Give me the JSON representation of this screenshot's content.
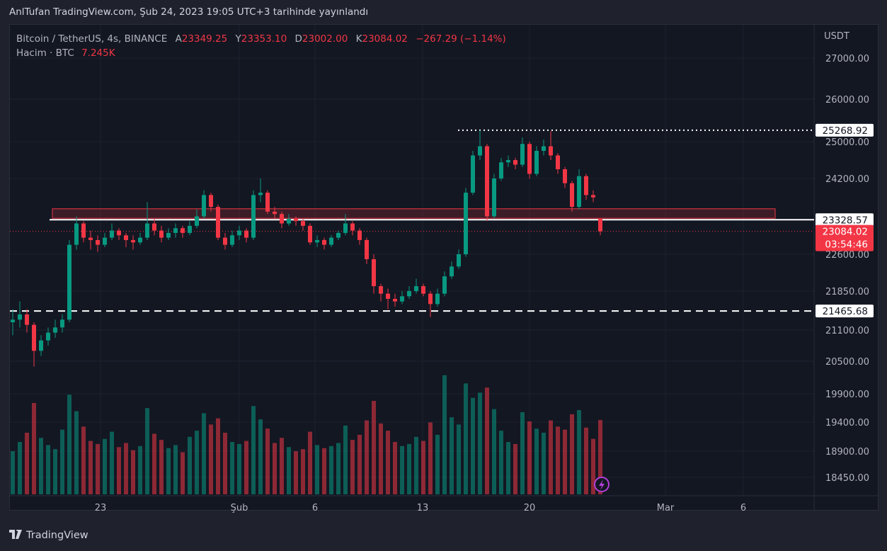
{
  "published_line": "AnlTufan TradingView.com, Şub 24, 2023 19:05 UTC+3 tarihinde yayınlandı",
  "legend": {
    "symbol": "Bitcoin / TetherUS, 4s, BINANCE",
    "open_label": "A",
    "open": "23349.25",
    "high_label": "Y",
    "high": "23353.10",
    "low_label": "D",
    "low": "23002.00",
    "close_label": "K",
    "close": "23084.02",
    "change": "−267.29 (−1.14%)",
    "volume_label": "Hacim · BTC",
    "volume": "7.245K"
  },
  "price_axis": {
    "currency": "USDT",
    "ticks": [
      "27000.00",
      "26000.00",
      "25000.00",
      "24200.00",
      "22600.00",
      "21850.00",
      "21100.00",
      "20500.00",
      "19900.00",
      "19400.00",
      "18900.00",
      "18450.00"
    ],
    "labels": {
      "resistance": "25268.92",
      "box_level": "23328.57",
      "last_price": "23084.02",
      "countdown": "03:54:46",
      "support": "21465.68"
    }
  },
  "time_axis": [
    "23",
    "Şub",
    "6",
    "13",
    "20",
    "Mar",
    "6"
  ],
  "footer": {
    "brand": "TradingView",
    "logo": "TV"
  },
  "colors": {
    "up": "#089981",
    "down": "#f23645",
    "background": "#131722",
    "line": "#ffffff",
    "zone": "#f23645",
    "alert": "#b33fd8"
  },
  "icons": {
    "alert": "lightning-icon"
  },
  "chart_data": {
    "type": "candlestick",
    "interval": "4s",
    "columns": [
      "open",
      "high",
      "low",
      "close",
      "volume_k"
    ],
    "candles": [
      [
        21250,
        21500,
        21000,
        21300,
        4.2
      ],
      [
        21300,
        21650,
        21150,
        21400,
        5.1
      ],
      [
        21400,
        21500,
        21050,
        21200,
        6.0
      ],
      [
        21200,
        21250,
        20400,
        20700,
        8.9
      ],
      [
        20700,
        21000,
        20600,
        20900,
        5.5
      ],
      [
        20900,
        21150,
        20800,
        21050,
        4.8
      ],
      [
        21050,
        21300,
        20950,
        21150,
        4.4
      ],
      [
        21150,
        21400,
        21050,
        21300,
        6.3
      ],
      [
        21300,
        22900,
        21250,
        22800,
        9.7
      ],
      [
        22800,
        23400,
        22700,
        23250,
        8.1
      ],
      [
        23250,
        23300,
        22850,
        22950,
        6.6
      ],
      [
        22950,
        23100,
        22700,
        22900,
        5.2
      ],
      [
        22900,
        23000,
        22650,
        22800,
        4.9
      ],
      [
        22800,
        23050,
        22750,
        22950,
        5.4
      ],
      [
        22950,
        23250,
        22900,
        23100,
        6.1
      ],
      [
        23100,
        23150,
        22900,
        23000,
        4.6
      ],
      [
        23000,
        23050,
        22750,
        22900,
        5.0
      ],
      [
        22900,
        23000,
        22700,
        22850,
        4.3
      ],
      [
        22850,
        23050,
        22800,
        22950,
        4.7
      ],
      [
        22950,
        23700,
        22900,
        23250,
        8.4
      ],
      [
        23250,
        23350,
        23000,
        23100,
        5.9
      ],
      [
        23100,
        23200,
        22850,
        22950,
        5.3
      ],
      [
        22950,
        23150,
        22900,
        23050,
        4.5
      ],
      [
        23050,
        23250,
        22950,
        23150,
        4.8
      ],
      [
        23150,
        23200,
        22950,
        23050,
        4.1
      ],
      [
        23050,
        23300,
        23000,
        23200,
        5.6
      ],
      [
        23200,
        23550,
        23150,
        23400,
        6.2
      ],
      [
        23400,
        23950,
        23350,
        23850,
        7.9
      ],
      [
        23850,
        23900,
        23500,
        23600,
        6.8
      ],
      [
        23600,
        23650,
        22900,
        22950,
        7.4
      ],
      [
        22950,
        23050,
        22700,
        22800,
        6.0
      ],
      [
        22800,
        23100,
        22750,
        23000,
        5.1
      ],
      [
        23000,
        23200,
        22900,
        23100,
        4.9
      ],
      [
        23100,
        23150,
        22850,
        22950,
        5.2
      ],
      [
        22950,
        23950,
        22900,
        23850,
        8.6
      ],
      [
        23850,
        24200,
        23700,
        23900,
        7.3
      ],
      [
        23900,
        23950,
        23450,
        23500,
        6.4
      ],
      [
        23500,
        23600,
        23350,
        23450,
        5.0
      ],
      [
        23450,
        23500,
        23150,
        23250,
        5.5
      ],
      [
        23250,
        23450,
        23200,
        23350,
        4.6
      ],
      [
        23350,
        23400,
        23200,
        23300,
        4.2
      ],
      [
        23300,
        23350,
        23100,
        23200,
        4.4
      ],
      [
        23200,
        23250,
        22800,
        22850,
        6.1
      ],
      [
        22850,
        23000,
        22750,
        22900,
        4.8
      ],
      [
        22900,
        22950,
        22700,
        22800,
        4.5
      ],
      [
        22800,
        23000,
        22750,
        22950,
        4.7
      ],
      [
        22950,
        23100,
        22900,
        23050,
        5.0
      ],
      [
        23050,
        23450,
        23000,
        23250,
        6.7
      ],
      [
        23250,
        23300,
        23000,
        23100,
        5.3
      ],
      [
        23100,
        23150,
        22800,
        22900,
        5.8
      ],
      [
        22900,
        22950,
        22400,
        22500,
        7.2
      ],
      [
        22500,
        22600,
        21800,
        21950,
        9.1
      ],
      [
        21950,
        22000,
        21650,
        21800,
        6.9
      ],
      [
        21800,
        21900,
        21500,
        21700,
        6.2
      ],
      [
        21700,
        21800,
        21550,
        21650,
        5.1
      ],
      [
        21650,
        21850,
        21600,
        21750,
        4.7
      ],
      [
        21750,
        21950,
        21700,
        21850,
        4.9
      ],
      [
        21850,
        22100,
        21800,
        21950,
        5.6
      ],
      [
        21950,
        22000,
        21750,
        21800,
        5.2
      ],
      [
        21800,
        21850,
        21350,
        21600,
        7.0
      ],
      [
        21600,
        21900,
        21550,
        21800,
        5.8
      ],
      [
        21800,
        22250,
        21750,
        22150,
        11.6
      ],
      [
        22150,
        22450,
        22100,
        22350,
        7.5
      ],
      [
        22350,
        22700,
        22300,
        22600,
        6.8
      ],
      [
        22600,
        24000,
        22550,
        23900,
        10.8
      ],
      [
        23900,
        24800,
        23850,
        24700,
        9.4
      ],
      [
        24700,
        25268.92,
        24600,
        24900,
        9.9
      ],
      [
        24900,
        24950,
        23300,
        23400,
        10.4
      ],
      [
        23400,
        24300,
        23350,
        24200,
        8.3
      ],
      [
        24200,
        24650,
        24150,
        24550,
        6.2
      ],
      [
        24550,
        24700,
        24450,
        24600,
        5.1
      ],
      [
        24600,
        24650,
        24400,
        24500,
        4.9
      ],
      [
        24500,
        25100,
        24450,
        24950,
        8.0
      ],
      [
        24950,
        25000,
        24200,
        24300,
        7.1
      ],
      [
        24300,
        24900,
        24250,
        24800,
        6.4
      ],
      [
        24800,
        25050,
        24700,
        24900,
        6.0
      ],
      [
        24900,
        25250,
        24600,
        24700,
        7.2
      ],
      [
        24700,
        24750,
        24300,
        24400,
        6.6
      ],
      [
        24400,
        24450,
        24000,
        24100,
        6.3
      ],
      [
        24100,
        24150,
        23500,
        23600,
        7.8
      ],
      [
        23600,
        24400,
        23550,
        24250,
        8.2
      ],
      [
        24250,
        24300,
        23750,
        23850,
        6.5
      ],
      [
        23850,
        23950,
        23700,
        23800,
        5.4
      ],
      [
        23349.25,
        23353.1,
        23002.0,
        23084.02,
        7.245
      ]
    ],
    "levels": {
      "resistance": 25268.92,
      "box_level": 23328.57,
      "support": 21465.68,
      "last_price": 23084.02
    },
    "zone": {
      "top": 23560,
      "bottom": 23360
    }
  }
}
